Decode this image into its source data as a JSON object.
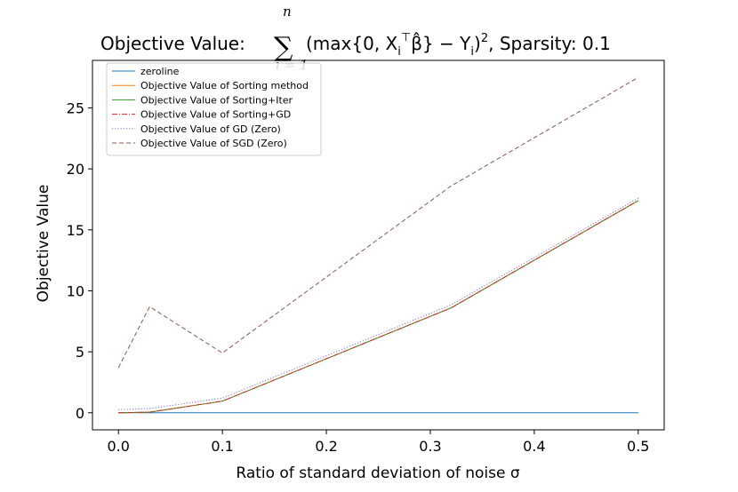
{
  "chart_data": {
    "type": "line",
    "title": {
      "prefix": "Objective Value:",
      "sum_symbol": "∑",
      "sum_upper": "n",
      "sum_lower": "i = 1",
      "formula": "(max{0, X",
      "formula_sub": "i",
      "formula_sup": "⊤",
      "formula_beta": "β̂",
      "formula_mid": "} − Y",
      "formula_sub2": "i",
      "formula_end": ")",
      "formula_pow": "2",
      "suffix": ", Sparsity: 0.1"
    },
    "xlabel": "Ratio of standard deviation of noise σ",
    "ylabel": "Objective Value",
    "xlim": [
      -0.025,
      0.525
    ],
    "ylim": [
      -1.4,
      28.9
    ],
    "xticks": [
      0.0,
      0.1,
      0.2,
      0.3,
      0.4,
      0.5
    ],
    "xtick_labels": [
      "0.0",
      "0.1",
      "0.2",
      "0.3",
      "0.4",
      "0.5"
    ],
    "yticks": [
      0,
      5,
      10,
      15,
      20,
      25
    ],
    "ytick_labels": [
      "0",
      "5",
      "10",
      "15",
      "20",
      "25"
    ],
    "grid": false,
    "legend_position": "top-left",
    "series": [
      {
        "name": "zeroline",
        "color": "#1f77b4",
        "dash": "solid",
        "x": [
          0.0,
          0.03,
          0.1,
          0.32,
          0.5
        ],
        "y": [
          0.0,
          0.0,
          0.0,
          0.0,
          0.0
        ]
      },
      {
        "name": "Objective Value of Sorting method",
        "color": "#ff7f0e",
        "dash": "solid",
        "x": [
          0.0,
          0.03,
          0.1,
          0.32,
          0.5
        ],
        "y": [
          0.0,
          0.05,
          0.95,
          8.6,
          17.4
        ]
      },
      {
        "name": "Objective Value of Sorting+Iter",
        "color": "#2ca02c",
        "dash": "solid",
        "x": [
          0.0,
          0.03,
          0.1,
          0.32,
          0.5
        ],
        "y": [
          0.0,
          0.05,
          0.95,
          8.6,
          17.4
        ]
      },
      {
        "name": "Objective Value of Sorting+GD",
        "color": "#d62728",
        "dash": "dashdot",
        "x": [
          0.0,
          0.03,
          0.1,
          0.32,
          0.5
        ],
        "y": [
          0.0,
          0.05,
          0.95,
          8.6,
          17.4
        ]
      },
      {
        "name": "Objective Value of GD (Zero)",
        "color": "#9467bd",
        "dash": "dotted",
        "x": [
          0.0,
          0.03,
          0.1,
          0.32,
          0.5
        ],
        "y": [
          0.25,
          0.35,
          1.2,
          8.85,
          17.6
        ]
      },
      {
        "name": "Objective Value of SGD (Zero)",
        "color": "#8c564b",
        "dash": "dashed",
        "x": [
          0.0,
          0.03,
          0.1,
          0.32,
          0.5
        ],
        "y": [
          3.7,
          8.7,
          4.9,
          18.6,
          27.5
        ]
      }
    ]
  }
}
